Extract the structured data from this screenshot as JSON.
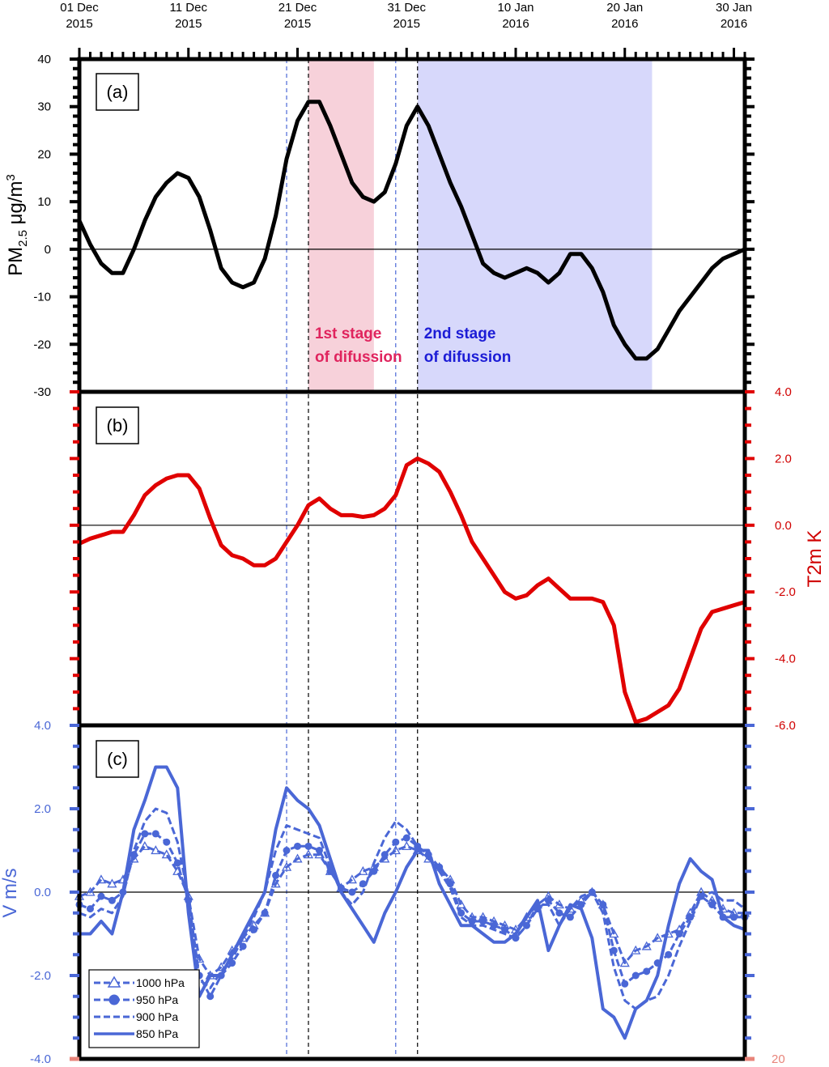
{
  "chart_data": [
    {
      "panel": "(a)",
      "type": "line",
      "ylabel": "PM",
      "ylabel_sub": "2.5",
      "ylabel_unit": " μg/m",
      "ylabel_sup": "3",
      "ylim": [
        -30,
        40
      ],
      "yticks": [
        40,
        30,
        20,
        10,
        0,
        -10,
        -20,
        -30
      ],
      "ytick_labels": [
        "40",
        "30",
        "20",
        "10",
        "0",
        "-10",
        "-20",
        "-30"
      ],
      "xlim": [
        0,
        61
      ],
      "xticks": [
        {
          "day": 0,
          "line1": "01 Dec",
          "line2": "2015"
        },
        {
          "day": 10,
          "line1": "11 Dec",
          "line2": "2015"
        },
        {
          "day": 20,
          "line1": "21 Dec",
          "line2": "2015"
        },
        {
          "day": 30,
          "line1": "31 Dec",
          "line2": "2015"
        },
        {
          "day": 40,
          "line1": "10 Jan",
          "line2": "2016"
        },
        {
          "day": 50,
          "line1": "20 Jan",
          "line2": "2016"
        },
        {
          "day": 60,
          "line1": "30 Jan",
          "line2": "2016"
        }
      ],
      "shaded_regions": [
        {
          "from": 21,
          "to": 27,
          "color": "#f7d1da",
          "label1": "1st stage",
          "label2": "of difussion",
          "text_color": "#e0245e"
        },
        {
          "from": 31,
          "to": 52.5,
          "color": "#d7d8fb",
          "label1": "2nd stage",
          "label2": "of difussion",
          "text_color": "#1c1cd6"
        }
      ],
      "series": [
        {
          "color": "#000000",
          "x": [
            0,
            1,
            2,
            3,
            4,
            5,
            6,
            7,
            8,
            9,
            10,
            11,
            12,
            13,
            14,
            15,
            16,
            17,
            18,
            19,
            20,
            21,
            22,
            23,
            24,
            25,
            26,
            27,
            28,
            29,
            30,
            31,
            32,
            33,
            34,
            35,
            36,
            37,
            38,
            39,
            40,
            41,
            42,
            43,
            44,
            45,
            46,
            47,
            48,
            49,
            50,
            51,
            52,
            53,
            54,
            55,
            56,
            57,
            58,
            59,
            60,
            61
          ],
          "y": [
            6,
            1,
            -3,
            -5,
            -5,
            0,
            6,
            11,
            14,
            16,
            15,
            11,
            4,
            -4,
            -7,
            -8,
            -7,
            -2,
            7,
            19,
            27,
            31,
            31,
            26,
            20,
            14,
            11,
            10,
            12,
            18,
            26,
            30,
            26,
            20,
            14,
            9,
            3,
            -3,
            -5,
            -6,
            -5,
            -4,
            -5,
            -7,
            -5,
            -1,
            -1,
            -4,
            -9,
            -16,
            -20,
            -23,
            -23,
            -21,
            -17,
            -13,
            -10,
            -7,
            -4,
            -2,
            -1,
            0
          ]
        }
      ]
    },
    {
      "panel": "(b)",
      "type": "line",
      "ylabel": "T2m K",
      "ylim": [
        -6,
        4
      ],
      "yticks": [
        4,
        2,
        0,
        -2,
        -4,
        -6
      ],
      "ytick_labels": [
        "4.0",
        "2.0",
        "0.0",
        "-2.0",
        "-4.0",
        "-6.0"
      ],
      "series": [
        {
          "color": "#e00000",
          "x": [
            0,
            1,
            2,
            3,
            4,
            5,
            6,
            7,
            8,
            9,
            10,
            11,
            12,
            13,
            14,
            15,
            16,
            17,
            18,
            19,
            20,
            21,
            22,
            23,
            24,
            25,
            26,
            27,
            28,
            29,
            30,
            31,
            32,
            33,
            34,
            35,
            36,
            37,
            38,
            39,
            40,
            41,
            42,
            43,
            44,
            45,
            46,
            47,
            48,
            49,
            50,
            51,
            52,
            53,
            54,
            55,
            56,
            57,
            58,
            59,
            60,
            61
          ],
          "y": [
            -0.55,
            -0.4,
            -0.3,
            -0.2,
            -0.2,
            0.3,
            0.9,
            1.2,
            1.4,
            1.5,
            1.5,
            1.1,
            0.2,
            -0.6,
            -0.9,
            -1.0,
            -1.2,
            -1.2,
            -1.0,
            -0.5,
            0.0,
            0.6,
            0.8,
            0.5,
            0.3,
            0.3,
            0.25,
            0.3,
            0.5,
            0.9,
            1.8,
            2.0,
            1.85,
            1.6,
            1.0,
            0.3,
            -0.5,
            -1.0,
            -1.5,
            -2.0,
            -2.2,
            -2.1,
            -1.8,
            -1.6,
            -1.9,
            -2.2,
            -2.2,
            -2.2,
            -2.3,
            -3.0,
            -5.0,
            -5.9,
            -5.8,
            -5.6,
            -5.4,
            -4.9,
            -4.0,
            -3.1,
            -2.6,
            -2.5,
            -2.4,
            -2.3
          ]
        }
      ]
    },
    {
      "panel": "(c)",
      "type": "line",
      "ylabel": "V m/s",
      "ylim": [
        -4,
        4
      ],
      "yticks": [
        4,
        2,
        0,
        -2,
        -4
      ],
      "ytick_labels": [
        "4.0",
        "2.0",
        "0.0",
        "-2.0",
        "-4.0"
      ],
      "right_bottom_label": "20",
      "legend": {
        "position": "bottom-left"
      },
      "series": [
        {
          "name": "1000 hPa",
          "style": "dashed-triangle",
          "color": "#4a67d6",
          "x": [
            0,
            1,
            2,
            3,
            4,
            5,
            6,
            7,
            8,
            9,
            10,
            11,
            12,
            13,
            14,
            15,
            16,
            17,
            18,
            19,
            20,
            21,
            22,
            23,
            24,
            25,
            26,
            27,
            28,
            29,
            30,
            31,
            32,
            33,
            34,
            35,
            36,
            37,
            38,
            39,
            40,
            41,
            42,
            43,
            44,
            45,
            46,
            47,
            48,
            49,
            50,
            51,
            52,
            53,
            54,
            55,
            56,
            57,
            58,
            59,
            60,
            61
          ],
          "y": [
            -0.1,
            0.0,
            0.3,
            0.2,
            0.3,
            0.8,
            1.1,
            1.0,
            0.9,
            0.5,
            -0.1,
            -1.6,
            -2.0,
            -1.8,
            -1.4,
            -1.1,
            -0.8,
            -0.5,
            0.2,
            0.6,
            0.8,
            0.9,
            0.9,
            0.5,
            0.1,
            0.3,
            0.5,
            0.6,
            0.8,
            1.0,
            1.1,
            1.0,
            0.8,
            0.6,
            0.3,
            -0.3,
            -0.6,
            -0.6,
            -0.7,
            -0.8,
            -0.9,
            -0.6,
            -0.3,
            -0.1,
            -0.3,
            -0.4,
            -0.2,
            0.0,
            -0.3,
            -1.0,
            -1.7,
            -1.4,
            -1.3,
            -1.1,
            -1.0,
            -0.9,
            -0.5,
            0.0,
            -0.2,
            -0.4,
            -0.5,
            -0.5
          ]
        },
        {
          "name": "950 hPa",
          "style": "dashed-circle",
          "color": "#4a67d6",
          "x": [
            0,
            1,
            2,
            3,
            4,
            5,
            6,
            7,
            8,
            9,
            10,
            11,
            12,
            13,
            14,
            15,
            16,
            17,
            18,
            19,
            20,
            21,
            22,
            23,
            24,
            25,
            26,
            27,
            28,
            29,
            30,
            31,
            32,
            33,
            34,
            35,
            36,
            37,
            38,
            39,
            40,
            41,
            42,
            43,
            44,
            45,
            46,
            47,
            48,
            49,
            50,
            51,
            52,
            53,
            54,
            55,
            56,
            57,
            58,
            59,
            60,
            61
          ],
          "y": [
            -0.3,
            -0.4,
            -0.1,
            -0.2,
            0.0,
            0.9,
            1.4,
            1.4,
            1.2,
            0.7,
            -0.2,
            -2.0,
            -2.5,
            -2.0,
            -1.7,
            -1.3,
            -0.9,
            -0.5,
            0.4,
            1.0,
            1.1,
            1.1,
            1.0,
            0.5,
            0.1,
            0.0,
            0.2,
            0.5,
            0.9,
            1.2,
            1.3,
            1.1,
            0.9,
            0.6,
            0.2,
            -0.5,
            -0.7,
            -0.7,
            -0.8,
            -0.9,
            -1.1,
            -0.8,
            -0.4,
            -0.2,
            -0.5,
            -0.6,
            -0.3,
            0.0,
            -0.3,
            -1.4,
            -2.2,
            -2.0,
            -1.9,
            -1.7,
            -1.5,
            -1.0,
            -0.6,
            -0.1,
            -0.3,
            -0.6,
            -0.6,
            -0.6
          ]
        },
        {
          "name": "900 hPa",
          "style": "dashed",
          "color": "#4a67d6",
          "x": [
            0,
            1,
            2,
            3,
            4,
            5,
            6,
            7,
            8,
            9,
            10,
            11,
            12,
            13,
            14,
            15,
            16,
            17,
            18,
            19,
            20,
            21,
            22,
            23,
            24,
            25,
            26,
            27,
            28,
            29,
            30,
            31,
            32,
            33,
            34,
            35,
            36,
            37,
            38,
            39,
            40,
            41,
            42,
            43,
            44,
            45,
            46,
            47,
            48,
            49,
            50,
            51,
            52,
            53,
            54,
            55,
            56,
            57,
            58,
            59,
            60,
            61
          ],
          "y": [
            -0.5,
            -0.6,
            -0.4,
            -0.5,
            -0.1,
            1.0,
            1.7,
            2.0,
            1.9,
            1.2,
            -0.1,
            -2.1,
            -2.3,
            -1.9,
            -1.6,
            -1.1,
            -0.6,
            0.0,
            1.0,
            1.6,
            1.5,
            1.4,
            1.3,
            0.6,
            0.0,
            -0.3,
            0.0,
            0.7,
            1.3,
            1.7,
            1.5,
            1.1,
            0.8,
            0.5,
            0.1,
            -0.6,
            -0.8,
            -0.8,
            -0.9,
            -1.0,
            -1.1,
            -0.8,
            -0.3,
            -0.3,
            -0.8,
            -0.4,
            -0.1,
            0.0,
            -0.5,
            -1.8,
            -2.6,
            -2.8,
            -2.6,
            -2.5,
            -2.0,
            -1.3,
            -0.7,
            -0.1,
            0.0,
            -0.2,
            -0.2,
            -0.4
          ]
        },
        {
          "name": "850 hPa",
          "style": "solid",
          "color": "#4a67d6",
          "x": [
            0,
            1,
            2,
            3,
            4,
            5,
            6,
            7,
            8,
            9,
            10,
            11,
            12,
            13,
            14,
            15,
            16,
            17,
            18,
            19,
            20,
            21,
            22,
            23,
            24,
            25,
            26,
            27,
            28,
            29,
            30,
            31,
            32,
            33,
            34,
            35,
            36,
            37,
            38,
            39,
            40,
            41,
            42,
            43,
            44,
            45,
            46,
            47,
            48,
            49,
            50,
            51,
            52,
            53,
            54,
            55,
            56,
            57,
            58,
            59,
            60,
            61
          ],
          "y": [
            -1.0,
            -1.0,
            -0.7,
            -1.0,
            0.0,
            1.5,
            2.2,
            3.0,
            3.0,
            2.5,
            -0.5,
            -2.5,
            -2.0,
            -2.0,
            -1.5,
            -1.0,
            -0.5,
            0.0,
            1.5,
            2.5,
            2.2,
            2.0,
            1.6,
            0.8,
            0.0,
            -0.4,
            -0.8,
            -1.2,
            -0.5,
            0.0,
            0.6,
            1.0,
            1.0,
            0.2,
            -0.3,
            -0.8,
            -0.8,
            -1.0,
            -1.2,
            -1.2,
            -1.0,
            -0.6,
            -0.2,
            -1.4,
            -0.8,
            -0.3,
            -0.4,
            -1.1,
            -2.8,
            -3.0,
            -3.5,
            -2.8,
            -2.6,
            -2.0,
            -0.8,
            0.2,
            0.8,
            0.5,
            0.3,
            -0.6,
            -0.8,
            -0.9
          ]
        }
      ]
    }
  ],
  "reference_lines": {
    "blue_dashed": [
      19,
      29
    ],
    "black_dashed": [
      21,
      31
    ]
  }
}
